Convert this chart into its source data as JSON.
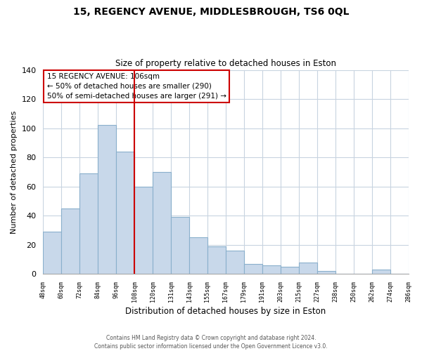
{
  "title_line1": "15, REGENCY AVENUE, MIDDLESBROUGH, TS6 0QL",
  "title_line2": "Size of property relative to detached houses in Eston",
  "xlabel": "Distribution of detached houses by size in Eston",
  "ylabel": "Number of detached properties",
  "bar_labels": [
    "48sqm",
    "60sqm",
    "72sqm",
    "84sqm",
    "96sqm",
    "108sqm",
    "120sqm",
    "131sqm",
    "143sqm",
    "155sqm",
    "167sqm",
    "179sqm",
    "191sqm",
    "203sqm",
    "215sqm",
    "227sqm",
    "238sqm",
    "250sqm",
    "262sqm",
    "274sqm",
    "286sqm"
  ],
  "bar_values": [
    29,
    45,
    69,
    102,
    84,
    60,
    70,
    39,
    25,
    19,
    16,
    7,
    6,
    5,
    8,
    2,
    0,
    0,
    3,
    0
  ],
  "bar_color": "#c8d8ea",
  "bar_edge_color": "#8ab0cc",
  "vline_color": "#cc0000",
  "vline_position": 5,
  "ylim": [
    0,
    140
  ],
  "yticks": [
    0,
    20,
    40,
    60,
    80,
    100,
    120,
    140
  ],
  "annotation_title": "15 REGENCY AVENUE: 106sqm",
  "annotation_line1": "← 50% of detached houses are smaller (290)",
  "annotation_line2": "50% of semi-detached houses are larger (291) →",
  "annotation_box_color": "#ffffff",
  "annotation_box_edge": "#cc0000",
  "footer_line1": "Contains HM Land Registry data © Crown copyright and database right 2024.",
  "footer_line2": "Contains public sector information licensed under the Open Government Licence v3.0.",
  "background_color": "#ffffff",
  "grid_color": "#c8d4e0"
}
